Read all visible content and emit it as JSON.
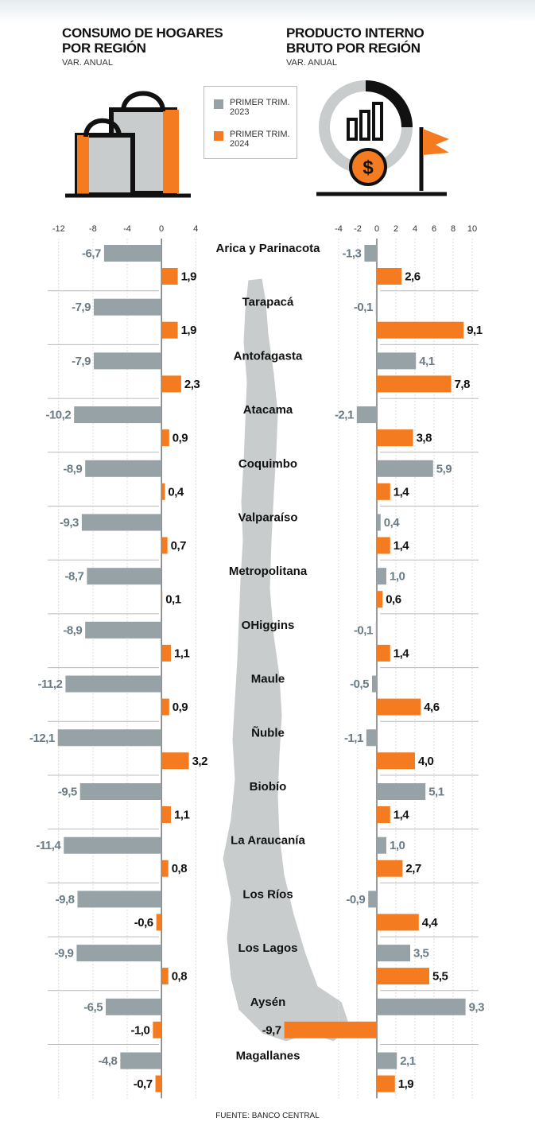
{
  "chart_data": [
    {
      "type": "bar",
      "orientation": "horizontal",
      "title": "CONSUMO DE HOGARES POR REGIÓN",
      "subtitle": "VAR. ANUAL",
      "categories": [
        "Arica y Parinacota",
        "Tarapacá",
        "Antofagasta",
        "Atacama",
        "Coquimbo",
        "Valparaíso",
        "Metropolitana",
        "OHiggins",
        "Maule",
        "Ñuble",
        "Biobío",
        "La Araucanía",
        "Los Ríos",
        "Los Lagos",
        "Aysén",
        "Magallanes"
      ],
      "series": [
        {
          "name": "PRIMER TRIM. 2023",
          "color": "#97a2a6",
          "values": [
            -6.7,
            -7.9,
            -7.9,
            -10.2,
            -8.9,
            -9.3,
            -8.7,
            -8.9,
            -11.2,
            -12.1,
            -9.5,
            -11.4,
            -9.8,
            -9.9,
            -6.5,
            -4.8
          ],
          "value_labels": [
            "-6,7",
            "-7,9",
            "-7,9",
            "-10,2",
            "-8,9",
            "-9,3",
            "-8,7",
            "-8,9",
            "-11,2",
            "-12,1",
            "-9,5",
            "-11,4",
            "-9,8",
            "-9,9",
            "-6,5",
            "-4,8"
          ]
        },
        {
          "name": "PRIMER TRIM. 2024",
          "color": "#f47b20",
          "values": [
            1.9,
            1.9,
            2.3,
            0.9,
            0.4,
            0.7,
            0.1,
            1.1,
            0.9,
            3.2,
            1.1,
            0.8,
            -0.6,
            0.8,
            -1.0,
            -0.7
          ],
          "value_labels": [
            "1,9",
            "1,9",
            "2,3",
            "0,9",
            "0,4",
            "0,7",
            "0,1",
            "1,1",
            "0,9",
            "3,2",
            "1,1",
            "0,8",
            "-0,6",
            "0,8",
            "-1,0",
            "-0,7"
          ]
        }
      ],
      "xlim": [
        -13,
        5
      ],
      "xticks": [
        -12,
        -8,
        -4,
        0,
        4
      ],
      "grid": true
    },
    {
      "type": "bar",
      "orientation": "horizontal",
      "title": "PRODUCTO INTERNO BRUTO POR REGIÓN",
      "subtitle": "VAR. ANUAL",
      "series": [
        {
          "color": "#97a2a6",
          "values": [
            -1.3,
            -0.1,
            4.1,
            -2.1,
            5.9,
            0.4,
            1.0,
            -0.1,
            -0.5,
            -1.1,
            5.1,
            1.0,
            -0.9,
            3.5,
            9.3,
            2.1
          ],
          "value_labels": [
            "-1,3",
            "-0,1",
            "4,1",
            "-2,1",
            "5,9",
            "0,4",
            "1,0",
            "-0,1",
            "-0,5",
            "-1,1",
            "5,1",
            "1,0",
            "-0,9",
            "3,5",
            "9,3",
            "2,1"
          ]
        },
        {
          "color": "#f47b20",
          "values": [
            2.6,
            9.1,
            7.8,
            3.8,
            1.4,
            1.4,
            0.6,
            1.4,
            4.6,
            4.0,
            1.4,
            2.7,
            4.4,
            5.5,
            -9.7,
            1.9
          ],
          "value_labels": [
            "2,6",
            "9,1",
            "7,8",
            "3,8",
            "1,4",
            "1,4",
            "0,6",
            "1,4",
            "4,6",
            "4,0",
            "1,4",
            "2,7",
            "4,4",
            "5,5",
            "-9,7",
            "1,9"
          ]
        }
      ],
      "xlim": [
        -10,
        11
      ],
      "xticks": [
        -4,
        -2,
        0,
        2,
        4,
        6,
        8,
        10
      ],
      "grid": true
    }
  ],
  "source": "FUENTE: BANCO CENTRAL"
}
